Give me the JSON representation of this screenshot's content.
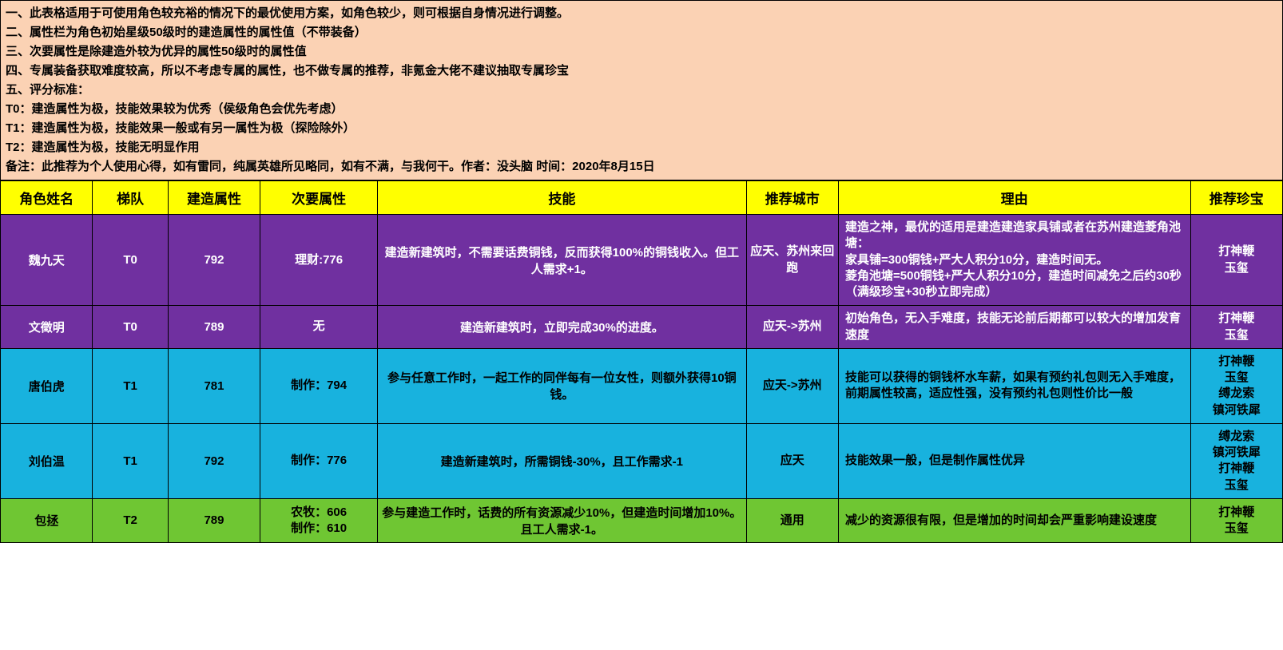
{
  "notes": {
    "lines": [
      "一、此表格适用于可使用角色较充裕的情况下的最优使用方案，如角色较少，则可根据自身情况进行调整。",
      "二、属性栏为角色初始星级50级时的建造属性的属性值（不带装备）",
      "三、次要属性是除建造外较为优异的属性50级时的属性值",
      "四、专属装备获取难度较高，所以不考虑专属的属性，也不做专属的推荐，非氪金大佬不建议抽取专属珍宝",
      "五、评分标准：",
      "T0：建造属性为极，技能效果较为优秀（侯级角色会优先考虑）",
      "T1：建造属性为极，技能效果一般或有另一属性为极（探险除外）",
      "T2：建造属性为极，技能无明显作用",
      "备注：此推荐为个人使用心得，如有雷同，纯属英雄所见略同，如有不满，与我何干。作者：没头脑  时间：2020年8月15日"
    ]
  },
  "headers": {
    "name": "角色姓名",
    "tier": "梯队",
    "build": "建造属性",
    "second": "次要属性",
    "skill": "技能",
    "city": "推荐城市",
    "reason": "理由",
    "treasure": "推荐珍宝"
  },
  "colors": {
    "notes_bg": "#fbd2b4",
    "header_bg": "#ffff00",
    "t0_bg": "#7030a0",
    "t1_bg": "#18b2de",
    "t2_bg": "#6fc633",
    "border": "#000000"
  },
  "rows": [
    {
      "tier_class": "T0",
      "name": "魏九天",
      "tier": "T0",
      "build": "792",
      "second": "理财:776",
      "skill": "建造新建筑时，不需要话费铜钱，反而获得100%的铜钱收入。但工人需求+1。",
      "city": "应天、苏州来回跑",
      "reason": "建造之神，最优的适用是建造建造家具铺或者在苏州建造菱角池塘：\n家具铺=300铜钱+严大人积分10分，建造时间无。\n菱角池塘=500铜钱+严大人积分10分，建造时间减免之后约30秒（满级珍宝+30秒立即完成）",
      "treasure": "打神鞭\n玉玺"
    },
    {
      "tier_class": "T0",
      "name": "文徵明",
      "tier": "T0",
      "build": "789",
      "second": "无",
      "skill": "建造新建筑时，立即完成30%的进度。",
      "city": "应天->苏州",
      "reason": "初始角色，无入手难度，技能无论前后期都可以较大的增加发育速度",
      "treasure": "打神鞭\n玉玺"
    },
    {
      "tier_class": "T1",
      "name": "唐伯虎",
      "tier": "T1",
      "build": "781",
      "second": "制作：794",
      "skill": "参与任意工作时，一起工作的同伴每有一位女性，则额外获得10铜钱。",
      "city": "应天->苏州",
      "reason": "技能可以获得的铜钱杯水车薪，如果有预约礼包则无入手难度，前期属性较高，适应性强，没有预约礼包则性价比一般",
      "treasure": "打神鞭\n玉玺\n缚龙索\n镇河铁犀"
    },
    {
      "tier_class": "T1",
      "name": "刘伯温",
      "tier": "T1",
      "build": "792",
      "second": "制作：776",
      "skill": "建造新建筑时，所需铜钱-30%，且工作需求-1",
      "city": "应天",
      "reason": "技能效果一般，但是制作属性优异",
      "treasure": "缚龙索\n镇河铁犀\n打神鞭\n玉玺"
    },
    {
      "tier_class": "T2",
      "name": "包拯",
      "tier": "T2",
      "build": "789",
      "second": "农牧：606\n制作：610",
      "skill": "参与建造工作时，话费的所有资源减少10%，但建造时间增加10%。且工人需求-1。",
      "city": "通用",
      "reason": "减少的资源很有限，但是增加的时间却会严重影响建设速度",
      "treasure": "打神鞭\n玉玺"
    }
  ]
}
